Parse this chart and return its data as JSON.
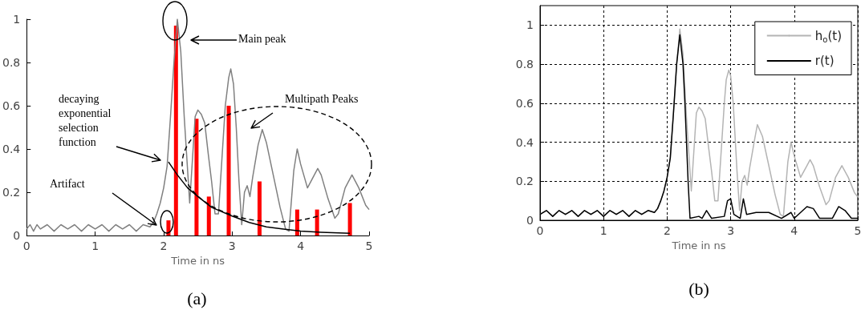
{
  "chart_data": [
    {
      "type": "line",
      "xlabel": "Time in ns",
      "xlim": [
        0,
        5
      ],
      "xticks": [
        0,
        1,
        2,
        3,
        4,
        5
      ],
      "ylim": [
        0,
        1
      ],
      "yticks": [
        0,
        0.2,
        0.4,
        0.6,
        0.8,
        1
      ],
      "grid": false,
      "legend": false,
      "marker": "none",
      "series": [
        {
          "color": "#808080",
          "x": [
            0,
            0.05,
            0.1,
            0.15,
            0.2,
            0.3,
            0.4,
            0.5,
            0.6,
            0.7,
            0.8,
            0.9,
            1.0,
            1.1,
            1.2,
            1.3,
            1.4,
            1.5,
            1.6,
            1.7,
            1.8,
            1.85,
            1.9,
            1.95,
            2.0,
            2.05,
            2.1,
            2.15,
            2.2,
            2.25,
            2.3,
            2.35,
            2.38,
            2.42,
            2.46,
            2.5,
            2.55,
            2.6,
            2.65,
            2.7,
            2.75,
            2.8,
            2.85,
            2.9,
            2.95,
            2.98,
            3.02,
            3.06,
            3.1,
            3.14,
            3.18,
            3.22,
            3.26,
            3.3,
            3.38,
            3.44,
            3.5,
            3.6,
            3.7,
            3.78,
            3.83,
            3.9,
            3.95,
            4.0,
            4.1,
            4.2,
            4.25,
            4.3,
            4.4,
            4.5,
            4.55,
            4.65,
            4.75,
            4.85,
            4.95,
            5.0
          ],
          "values": [
            0.03,
            0.05,
            0.02,
            0.05,
            0.03,
            0.05,
            0.02,
            0.05,
            0.03,
            0.05,
            0.02,
            0.05,
            0.03,
            0.05,
            0.02,
            0.05,
            0.03,
            0.05,
            0.02,
            0.05,
            0.04,
            0.06,
            0.1,
            0.15,
            0.22,
            0.32,
            0.55,
            0.8,
            1.0,
            0.85,
            0.55,
            0.3,
            0.15,
            0.35,
            0.55,
            0.58,
            0.56,
            0.52,
            0.38,
            0.25,
            0.1,
            0.1,
            0.35,
            0.6,
            0.73,
            0.77,
            0.7,
            0.5,
            0.25,
            0.05,
            0.2,
            0.23,
            0.18,
            0.27,
            0.42,
            0.49,
            0.43,
            0.28,
            0.13,
            0.03,
            0.02,
            0.3,
            0.4,
            0.33,
            0.22,
            0.28,
            0.31,
            0.28,
            0.17,
            0.08,
            0.1,
            0.22,
            0.28,
            0.22,
            0.14,
            0.12
          ]
        },
        {
          "type": "bar",
          "color": "#ff0000",
          "x": [
            2.07,
            2.18,
            2.48,
            2.66,
            2.95,
            3.4,
            3.95,
            4.24,
            4.72
          ],
          "values": [
            0.07,
            0.97,
            0.54,
            0.18,
            0.6,
            0.25,
            0.12,
            0.12,
            0.15
          ]
        },
        {
          "color": "#000000",
          "x": [
            2.07,
            2.2,
            2.35,
            2.5,
            2.7,
            3.0,
            3.25,
            3.5,
            3.75,
            4.0,
            4.3,
            4.72
          ],
          "values": [
            0.34,
            0.28,
            0.22,
            0.18,
            0.13,
            0.09,
            0.06,
            0.04,
            0.03,
            0.02,
            0.015,
            0.01
          ]
        }
      ],
      "annotations": [
        "Main peak",
        "Multipath Peaks",
        "decaying exponential selection function",
        "Artifact",
        "(a)"
      ]
    },
    {
      "type": "line",
      "xlabel": "Time in ns",
      "xlim": [
        0,
        5
      ],
      "xticks": [
        0,
        1,
        2,
        3,
        4,
        5
      ],
      "ylim": [
        0,
        1.1
      ],
      "yticks": [
        0,
        0.2,
        0.4,
        0.6,
        0.8,
        1
      ],
      "grid": true,
      "legend": "top right",
      "marker": "none",
      "series": [
        {
          "name": "h$_{o}$(t)",
          "color": "#b4b4b4",
          "x": [
            0,
            0.1,
            0.2,
            0.3,
            0.4,
            0.5,
            0.6,
            0.7,
            0.8,
            0.9,
            1.0,
            1.1,
            1.2,
            1.3,
            1.4,
            1.5,
            1.6,
            1.7,
            1.8,
            1.85,
            1.9,
            1.95,
            2.0,
            2.05,
            2.1,
            2.15,
            2.2,
            2.25,
            2.3,
            2.35,
            2.38,
            2.42,
            2.46,
            2.5,
            2.55,
            2.6,
            2.65,
            2.7,
            2.75,
            2.8,
            2.85,
            2.9,
            2.93,
            2.97,
            3.0,
            3.04,
            3.1,
            3.14,
            3.18,
            3.22,
            3.26,
            3.3,
            3.38,
            3.42,
            3.5,
            3.6,
            3.7,
            3.78,
            3.83,
            3.9,
            3.95,
            4.0,
            4.1,
            4.2,
            4.25,
            4.3,
            4.4,
            4.5,
            4.55,
            4.65,
            4.75,
            4.85,
            4.95,
            5.0
          ],
          "values": [
            0.03,
            0.05,
            0.02,
            0.05,
            0.03,
            0.05,
            0.02,
            0.05,
            0.03,
            0.05,
            0.02,
            0.05,
            0.03,
            0.05,
            0.02,
            0.05,
            0.03,
            0.05,
            0.04,
            0.06,
            0.1,
            0.15,
            0.22,
            0.32,
            0.55,
            0.8,
            0.98,
            0.85,
            0.55,
            0.3,
            0.15,
            0.35,
            0.55,
            0.58,
            0.56,
            0.52,
            0.38,
            0.25,
            0.1,
            0.1,
            0.35,
            0.6,
            0.72,
            0.77,
            0.74,
            0.6,
            0.25,
            0.05,
            0.2,
            0.23,
            0.18,
            0.27,
            0.42,
            0.49,
            0.43,
            0.28,
            0.13,
            0.03,
            0.02,
            0.3,
            0.4,
            0.33,
            0.22,
            0.28,
            0.31,
            0.28,
            0.17,
            0.08,
            0.1,
            0.22,
            0.28,
            0.22,
            0.14,
            0.12
          ]
        },
        {
          "name": "r(t)",
          "color": "#000000",
          "x": [
            0,
            0.1,
            0.2,
            0.3,
            0.4,
            0.5,
            0.6,
            0.7,
            0.8,
            0.9,
            1.0,
            1.1,
            1.2,
            1.3,
            1.4,
            1.5,
            1.6,
            1.7,
            1.8,
            1.85,
            1.9,
            1.95,
            2.0,
            2.05,
            2.1,
            2.15,
            2.2,
            2.25,
            2.28,
            2.33,
            2.36,
            2.5,
            2.55,
            2.62,
            2.7,
            2.9,
            2.95,
            3.0,
            3.05,
            3.15,
            3.2,
            3.25,
            3.4,
            3.6,
            3.8,
            3.95,
            4.0,
            4.2,
            4.3,
            4.4,
            4.6,
            4.7,
            4.8,
            4.9,
            5.0
          ],
          "values": [
            0.03,
            0.05,
            0.02,
            0.05,
            0.03,
            0.05,
            0.02,
            0.05,
            0.03,
            0.05,
            0.02,
            0.05,
            0.03,
            0.05,
            0.02,
            0.05,
            0.03,
            0.05,
            0.04,
            0.06,
            0.1,
            0.15,
            0.22,
            0.32,
            0.55,
            0.8,
            0.95,
            0.8,
            0.6,
            0.2,
            0.01,
            0.02,
            0.01,
            0.05,
            0.01,
            0.02,
            0.1,
            0.11,
            0.03,
            0.01,
            0.11,
            0.03,
            0.04,
            0.04,
            0.01,
            0.04,
            0.01,
            0.07,
            0.06,
            0.01,
            0.01,
            0.07,
            0.05,
            0.01,
            0.01
          ]
        }
      ],
      "annotations": [
        "(b)"
      ]
    }
  ]
}
